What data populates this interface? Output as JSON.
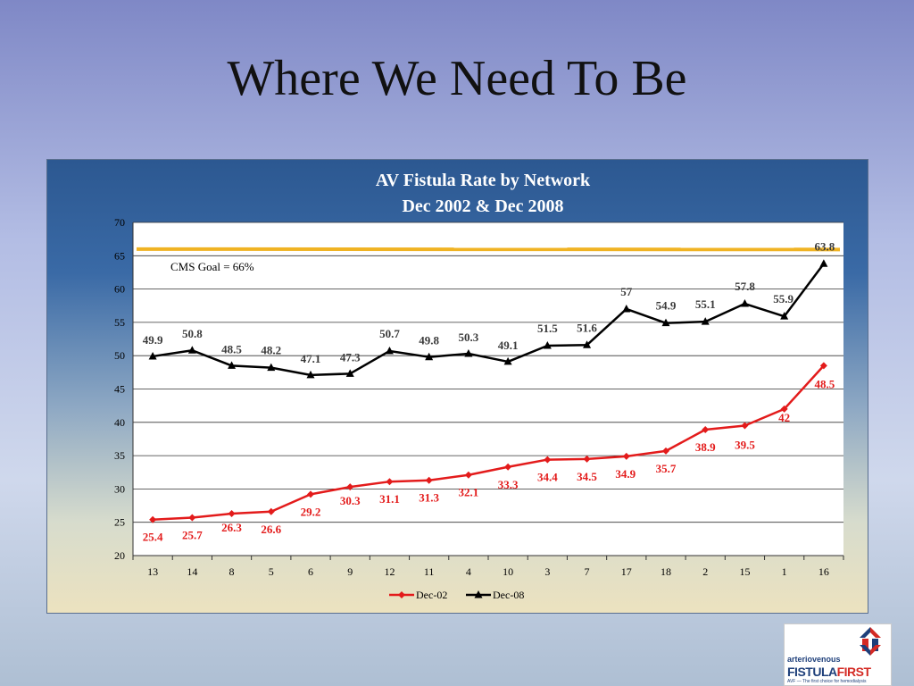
{
  "slide": {
    "title": "Where We Need To Be"
  },
  "logo": {
    "line1": "arteriovenous",
    "line2a": "FISTULA",
    "line2b": "FIRST",
    "tagline": "AVF — The first choice for hemodialysis"
  },
  "chart_data": {
    "type": "line",
    "title": "AV Fistula Rate by Network",
    "subtitle": "Dec 2002 & Dec 2008",
    "categories": [
      "13",
      "14",
      "8",
      "5",
      "6",
      "9",
      "12",
      "11",
      "4",
      "10",
      "3",
      "7",
      "17",
      "18",
      "2",
      "15",
      "1",
      "16"
    ],
    "ylim": [
      20,
      70
    ],
    "yticks": [
      20,
      25,
      30,
      35,
      40,
      45,
      50,
      55,
      60,
      65,
      70
    ],
    "grid": true,
    "legend_position": "bottom",
    "goal": {
      "value": 66,
      "label": "CMS Goal = 66%",
      "color": "#f0b323"
    },
    "series": [
      {
        "name": "Dec-02",
        "color": "#e31b1b",
        "marker": "diamond",
        "values": [
          25.4,
          25.7,
          26.3,
          26.6,
          29.2,
          30.3,
          31.1,
          31.3,
          32.1,
          33.3,
          34.4,
          34.5,
          34.9,
          35.7,
          38.9,
          39.5,
          42,
          48.5
        ],
        "labels": [
          "25.4",
          "25.7",
          "26.3",
          "26.6",
          "29.2",
          "30.3",
          "31.1",
          "31.3",
          "32.1",
          "33.3",
          "34.4",
          "34.5",
          "34.9",
          "35.7",
          "38.9",
          "39.5",
          "42",
          "48.5"
        ]
      },
      {
        "name": "Dec-08",
        "color": "#000000",
        "marker": "triangle",
        "values": [
          49.9,
          50.8,
          48.5,
          48.2,
          47.1,
          47.3,
          50.7,
          49.8,
          50.3,
          49.1,
          51.5,
          51.6,
          57,
          54.9,
          55.1,
          57.8,
          55.9,
          63.8
        ],
        "labels": [
          "49.9",
          "50.8",
          "48.5",
          "48.2",
          "47.1",
          "47.3",
          "50.7",
          "49.8",
          "50.3",
          "49.1",
          "51.5",
          "51.6",
          "57",
          "54.9",
          "55.1",
          "57.8",
          "55.9",
          "63.8"
        ]
      }
    ]
  }
}
